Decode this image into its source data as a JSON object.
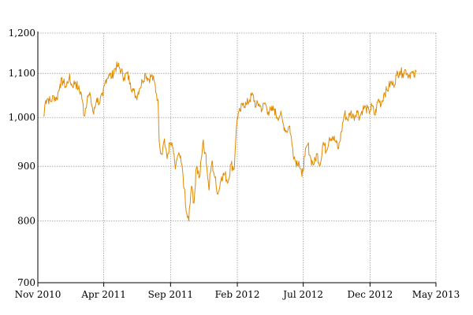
{
  "chart_data": {
    "type": "line",
    "title": "",
    "xlabel": "",
    "ylabel": "",
    "y_scale": "log",
    "ylim": [
      700,
      1200
    ],
    "xlim": [
      "2010-11-01",
      "2013-05-01"
    ],
    "y_ticks": [
      {
        "value": 700,
        "label": "700"
      },
      {
        "value": 800,
        "label": "800"
      },
      {
        "value": 900,
        "label": "900"
      },
      {
        "value": 1000,
        "label": "1,000"
      },
      {
        "value": 1100,
        "label": "1,100"
      },
      {
        "value": 1200,
        "label": "1,200"
      }
    ],
    "x_ticks": [
      {
        "value": "2010-11-01",
        "label": "Nov 2010"
      },
      {
        "value": "2011-04-01",
        "label": "Apr 2011"
      },
      {
        "value": "2011-09-01",
        "label": "Sep 2011"
      },
      {
        "value": "2012-02-01",
        "label": "Feb 2012"
      },
      {
        "value": "2012-07-01",
        "label": "Jul 2012"
      },
      {
        "value": "2012-12-01",
        "label": "Dec 2012"
      },
      {
        "value": "2013-05-01",
        "label": "May 2013"
      }
    ],
    "grid": true,
    "legend": "none",
    "series": [
      {
        "color": "#e08a00",
        "x": [
          "2010-11-15",
          "2010-11-19",
          "2010-11-24",
          "2010-12-01",
          "2010-12-08",
          "2010-12-15",
          "2010-12-22",
          "2010-12-29",
          "2011-01-05",
          "2011-01-12",
          "2011-01-19",
          "2011-01-26",
          "2011-02-02",
          "2011-02-09",
          "2011-02-16",
          "2011-02-23",
          "2011-03-02",
          "2011-03-09",
          "2011-03-16",
          "2011-03-23",
          "2011-03-30",
          "2011-04-06",
          "2011-04-13",
          "2011-04-20",
          "2011-04-27",
          "2011-05-04",
          "2011-05-11",
          "2011-05-18",
          "2011-05-25",
          "2011-06-01",
          "2011-06-08",
          "2011-06-15",
          "2011-06-22",
          "2011-06-29",
          "2011-07-06",
          "2011-07-13",
          "2011-07-20",
          "2011-07-27",
          "2011-08-03",
          "2011-08-08",
          "2011-08-12",
          "2011-08-18",
          "2011-08-24",
          "2011-08-31",
          "2011-09-07",
          "2011-09-12",
          "2011-09-16",
          "2011-09-22",
          "2011-09-27",
          "2011-10-03",
          "2011-10-07",
          "2011-10-13",
          "2011-10-19",
          "2011-10-25",
          "2011-10-31",
          "2011-11-07",
          "2011-11-14",
          "2011-11-21",
          "2011-11-28",
          "2011-12-05",
          "2011-12-12",
          "2011-12-19",
          "2011-12-27",
          "2012-01-04",
          "2012-01-11",
          "2012-01-18",
          "2012-01-25",
          "2012-02-01",
          "2012-02-08",
          "2012-02-15",
          "2012-02-22",
          "2012-03-01",
          "2012-03-08",
          "2012-03-15",
          "2012-03-22",
          "2012-03-29",
          "2012-04-05",
          "2012-04-12",
          "2012-04-19",
          "2012-04-26",
          "2012-05-03",
          "2012-05-10",
          "2012-05-17",
          "2012-05-24",
          "2012-05-31",
          "2012-06-07",
          "2012-06-14",
          "2012-06-21",
          "2012-06-28",
          "2012-07-05",
          "2012-07-12",
          "2012-07-19",
          "2012-07-26",
          "2012-08-02",
          "2012-08-09",
          "2012-08-16",
          "2012-08-23",
          "2012-08-30",
          "2012-09-06",
          "2012-09-13",
          "2012-09-20",
          "2012-09-27",
          "2012-10-04",
          "2012-10-11",
          "2012-10-18",
          "2012-10-25",
          "2012-11-01",
          "2012-11-08",
          "2012-11-15",
          "2012-11-22",
          "2012-11-29",
          "2012-12-06",
          "2012-12-13",
          "2012-12-20",
          "2012-12-27",
          "2013-01-03",
          "2013-01-10",
          "2013-01-17",
          "2013-01-24",
          "2013-01-31",
          "2013-02-07",
          "2013-02-14",
          "2013-02-21",
          "2013-02-28",
          "2013-03-06",
          "2013-03-12",
          "2013-03-18"
        ],
        "values": [
          1002,
          1038,
          1042,
          1035,
          1047,
          1040,
          1075,
          1082,
          1068,
          1091,
          1070,
          1080,
          1065,
          1052,
          1003,
          1048,
          1045,
          1007,
          1042,
          1032,
          1048,
          1085,
          1098,
          1092,
          1112,
          1118,
          1107,
          1090,
          1100,
          1078,
          1060,
          1045,
          1065,
          1082,
          1100,
          1086,
          1095,
          1076,
          1040,
          935,
          925,
          955,
          915,
          945,
          935,
          895,
          915,
          920,
          902,
          857,
          815,
          800,
          862,
          832,
          900,
          880,
          948,
          925,
          855,
          910,
          878,
          848,
          880,
          885,
          870,
          905,
          895,
          1000,
          1013,
          1032,
          1028,
          1040,
          1050,
          1025,
          1030,
          1018,
          1032,
          1012,
          1015,
          1018,
          1000,
          1008,
          985,
          970,
          982,
          935,
          908,
          910,
          880,
          920,
          945,
          912,
          905,
          925,
          903,
          948,
          930,
          958,
          960,
          950,
          935,
          970,
          1010,
          995,
          1012,
          1000,
          1015,
          1002,
          1020,
          1020,
          1012,
          1025,
          1005,
          1040,
          1030,
          1055,
          1060,
          1078,
          1072,
          1095,
          1105,
          1100,
          1108,
          1096,
          1102,
          1092,
          1105
        ]
      }
    ]
  }
}
